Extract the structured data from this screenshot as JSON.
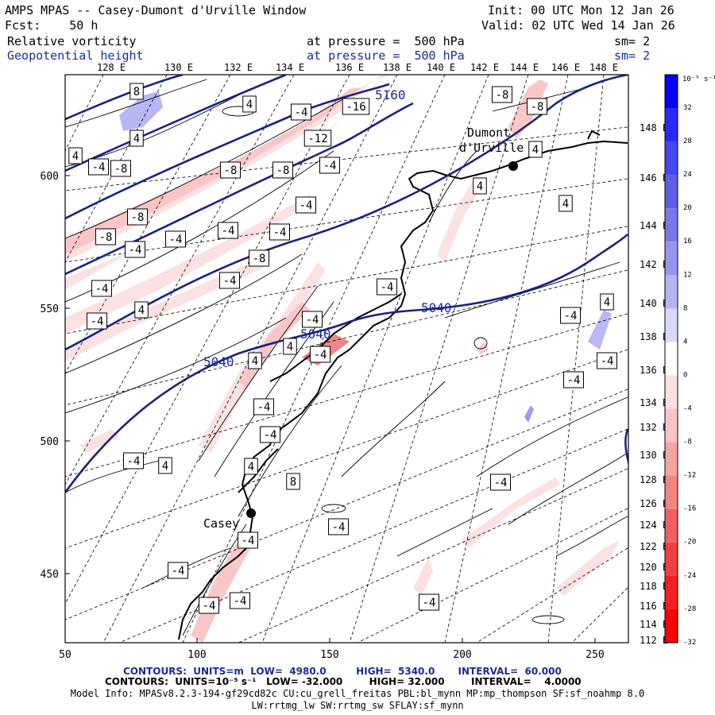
{
  "header": {
    "title": "AMPS MPAS -- Casey-Dumont d'Urville Window",
    "forecast": "Fcst:    50 h",
    "init": "Init: 00 UTC Mon 12 Jan 26",
    "valid": "Valid: 02 UTC Wed 14 Jan 26",
    "field1_name": "Relative vorticity",
    "field1_level": "at pressure =  500 hPa",
    "field1_smooth": "sm= 2",
    "field2_name": "Geopotential height",
    "field2_level": "at pressure =  500 hPa",
    "field2_smooth": "sm= 2"
  },
  "top_lon_labels": [
    "128 E",
    "130 E",
    "132 E",
    "134 E",
    "136 E",
    "138 E",
    "140 E",
    "142 E",
    "144 E",
    "146 E",
    "148 E"
  ],
  "right_lon_labels": [
    "148 E",
    "146 E",
    "144 E",
    "142 E",
    "140 E",
    "138 E",
    "136 E",
    "134 E",
    "132 E",
    "130 E",
    "128 E",
    "126 E",
    "124 E",
    "122 E",
    "120 E",
    "118 E",
    "116 E",
    "114 E",
    "112 E"
  ],
  "x_axis_labels": [
    "50",
    "100",
    "150",
    "200",
    "250"
  ],
  "y_axis_labels": [
    "600",
    "550",
    "500",
    "450"
  ],
  "place_labels": {
    "casey": "Casey",
    "dumont_1": "Dumont",
    "dumont_2": "d'Urville"
  },
  "height_contour_labels": [
    "5160",
    "5040",
    "5040",
    "5040"
  ],
  "vorticity_box_labels": [
    "8",
    "4",
    "4",
    "4",
    "-4",
    "-16",
    "-8",
    "-8",
    "-12",
    "-8",
    "-8",
    "-4",
    "-4",
    "-8",
    "-4",
    "-8",
    "-4",
    "-8",
    "-4",
    "-4",
    "-4",
    "-8",
    "-4",
    "-4",
    "-4",
    "-4",
    "-4",
    "4",
    "4",
    "4",
    "4",
    "4",
    "-4",
    "-4",
    "-4",
    "-4",
    "4",
    "4",
    "-4",
    "-4",
    "4",
    "8",
    "4",
    "-4",
    "-4",
    "-4",
    "-4",
    "-4",
    "-4",
    "-4",
    "-4"
  ],
  "colorbar": {
    "unit_label": "10⁻⁵ s⁻¹",
    "tick_labels": [
      "32",
      "28",
      "24",
      "20",
      "16",
      "12",
      "8",
      "4",
      "0",
      "-4",
      "-8",
      "-12",
      "-16",
      "-20",
      "-24",
      "-28",
      "-32"
    ],
    "colors": [
      "#0000ff",
      "#2a2aff",
      "#4646f2",
      "#5e5ee8",
      "#7878ea",
      "#9696f0",
      "#b4b4f6",
      "#d8d8fb",
      "#ffffff",
      "#fbe0e0",
      "#f8c4c4",
      "#f5a4a4",
      "#f28484",
      "#f06060",
      "#f04040",
      "#f42020",
      "#ff0000"
    ]
  },
  "footer": {
    "contours1": "CONTOURS:  UNITS=m  LOW=  4980.0         HIGH=  5340.0       INTERVAL=  60.000",
    "contours2": "CONTOURS:  UNITS=10⁻⁵ s⁻¹   LOW= -32.000        HIGH= 32.000        INTERVAL=    4.0000",
    "model_info_1": "Model Info: MPASv8.2.3-194-gf29cd82c CU:cu_grell_freitas PBL:bl_mynn MP:mp_thompson SF:sf_noahmp 8.0",
    "model_info_2": "LW:rrtmg_lw SW:rrtmg_sw SFLAY:sf_mynn"
  },
  "colors": {
    "height_contour": "#1a237e",
    "title_blue": "#1a2a9a"
  }
}
